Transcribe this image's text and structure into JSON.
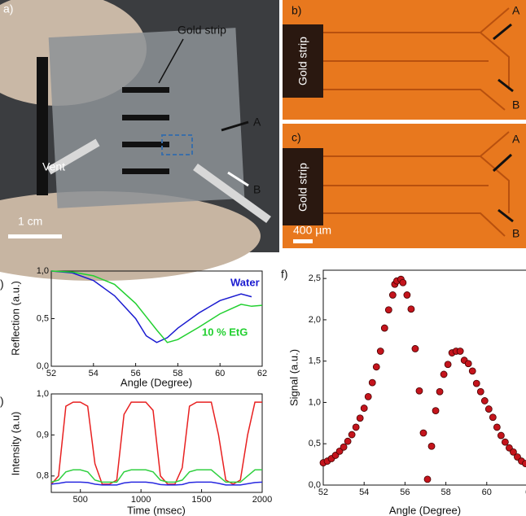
{
  "panels": {
    "a": {
      "label": "a)",
      "gold_strip": "Gold strip",
      "A": "A",
      "B": "B",
      "vent": "Vent",
      "scale": "1 cm"
    },
    "b": {
      "label": "b)",
      "gold_strip": "Gold strip",
      "A": "A",
      "B": "B"
    },
    "c": {
      "label": "c)",
      "gold_strip": "Gold strip",
      "A": "A",
      "B": "B",
      "scale": "400 µm"
    }
  },
  "chart_data": [
    {
      "type": "line",
      "panel_label": ")",
      "x_label": "Angle (Degree)",
      "y_label": "Reflection (a.u.)",
      "x": [
        52,
        53,
        54,
        55,
        56,
        56.5,
        57,
        57.5,
        58,
        59,
        60,
        61,
        61.5,
        62
      ],
      "series": [
        {
          "name": "Water",
          "color": "#1a1ad0",
          "values": [
            1.0,
            0.98,
            0.9,
            0.74,
            0.5,
            0.32,
            0.25,
            0.3,
            0.4,
            0.56,
            0.69,
            0.76,
            0.73,
            null
          ]
        },
        {
          "name": "10 % EtG",
          "color": "#22d030",
          "values": [
            1.0,
            0.99,
            0.95,
            0.86,
            0.66,
            0.52,
            0.38,
            0.25,
            0.28,
            0.41,
            0.55,
            0.65,
            0.63,
            0.64
          ]
        }
      ],
      "xlim": [
        52,
        62
      ],
      "xticks": [
        52,
        54,
        56,
        58,
        60,
        62
      ],
      "ylim": [
        0,
        1.0
      ],
      "yticks": [
        {
          "value": 0,
          "label": "0,0"
        },
        {
          "value": 0.5,
          "label": "0,5"
        },
        {
          "value": 1.0,
          "label": "1,0"
        }
      ]
    },
    {
      "type": "line",
      "panel_label": ")",
      "x_label": "Time (msec)",
      "y_label": "Intensity (a.u)",
      "x": [
        260,
        320,
        380,
        440,
        500,
        560,
        620,
        680,
        740,
        800,
        860,
        920,
        980,
        1040,
        1100,
        1160,
        1220,
        1280,
        1340,
        1400,
        1460,
        1520,
        1580,
        1640,
        1700,
        1760,
        1820,
        1880,
        1940,
        2000
      ],
      "series": [
        {
          "color": "#e82020",
          "values": [
            0.78,
            0.8,
            0.97,
            0.98,
            0.98,
            0.97,
            0.83,
            0.78,
            0.78,
            0.79,
            0.95,
            0.98,
            0.98,
            0.98,
            0.96,
            0.8,
            0.78,
            0.78,
            0.82,
            0.97,
            0.98,
            0.98,
            0.98,
            0.9,
            0.79,
            0.78,
            0.79,
            0.9,
            0.98,
            0.98
          ]
        },
        {
          "color": "#30d040",
          "values": [
            0.785,
            0.79,
            0.81,
            0.815,
            0.815,
            0.81,
            0.79,
            0.785,
            0.785,
            0.785,
            0.81,
            0.815,
            0.815,
            0.815,
            0.81,
            0.79,
            0.785,
            0.785,
            0.79,
            0.81,
            0.815,
            0.815,
            0.815,
            0.8,
            0.785,
            0.785,
            0.785,
            0.8,
            0.815,
            0.815
          ]
        },
        {
          "color": "#2828e0",
          "values": [
            0.78,
            0.782,
            0.785,
            0.785,
            0.785,
            0.784,
            0.78,
            0.778,
            0.778,
            0.778,
            0.783,
            0.785,
            0.785,
            0.785,
            0.783,
            0.779,
            0.778,
            0.778,
            0.779,
            0.784,
            0.785,
            0.785,
            0.785,
            0.782,
            0.778,
            0.778,
            0.778,
            0.781,
            0.784,
            0.785
          ]
        }
      ],
      "xlim": [
        260,
        2000
      ],
      "xticks": [
        500,
        1000,
        1500,
        2000
      ],
      "ylim": [
        0.76,
        1.0
      ],
      "yticks": [
        {
          "value": 0.8,
          "label": "0,8"
        },
        {
          "value": 0.9,
          "label": "0,9"
        },
        {
          "value": 1.0,
          "label": "1,0"
        }
      ]
    },
    {
      "type": "scatter",
      "panel_label": "f)",
      "x_label": "Angle (Degree)",
      "y_label": "Signal (a.u.)",
      "color": "#c4141c",
      "x": [
        52.0,
        52.2,
        52.4,
        52.6,
        52.8,
        53.0,
        53.2,
        53.4,
        53.6,
        53.8,
        54.0,
        54.2,
        54.4,
        54.6,
        54.8,
        55.0,
        55.2,
        55.4,
        55.5,
        55.6,
        55.8,
        55.9,
        56.1,
        56.3,
        56.5,
        56.7,
        56.9,
        57.1,
        57.3,
        57.5,
        57.7,
        57.9,
        58.1,
        58.3,
        58.5,
        58.7,
        58.9,
        59.1,
        59.3,
        59.5,
        59.7,
        59.9,
        60.1,
        60.3,
        60.5,
        60.7,
        60.9,
        61.1,
        61.3,
        61.5,
        61.7,
        61.9
      ],
      "values": [
        0.27,
        0.29,
        0.32,
        0.36,
        0.41,
        0.46,
        0.53,
        0.61,
        0.7,
        0.81,
        0.93,
        1.07,
        1.24,
        1.43,
        1.62,
        1.9,
        2.12,
        2.3,
        2.43,
        2.47,
        2.49,
        2.45,
        2.3,
        2.13,
        1.65,
        1.14,
        0.63,
        0.07,
        0.47,
        0.9,
        1.13,
        1.34,
        1.46,
        1.6,
        1.62,
        1.62,
        1.51,
        1.47,
        1.38,
        1.23,
        1.13,
        1.02,
        0.92,
        0.82,
        0.7,
        0.6,
        0.52,
        0.45,
        0.4,
        0.34,
        0.29,
        0.26
      ],
      "xlim": [
        52,
        62
      ],
      "xticks": [
        52,
        54,
        56,
        58,
        60,
        {
          "value": 62,
          "label": "6"
        }
      ],
      "ylim": [
        0,
        2.6
      ],
      "yticks": [
        {
          "value": 0,
          "label": "0,0"
        },
        {
          "value": 0.5,
          "label": "0,5"
        },
        {
          "value": 1.0,
          "label": "1,0"
        },
        {
          "value": 1.5,
          "label": "1,5"
        },
        {
          "value": 2.0,
          "label": "2,0"
        },
        {
          "value": 2.5,
          "label": "2,5"
        }
      ]
    }
  ]
}
